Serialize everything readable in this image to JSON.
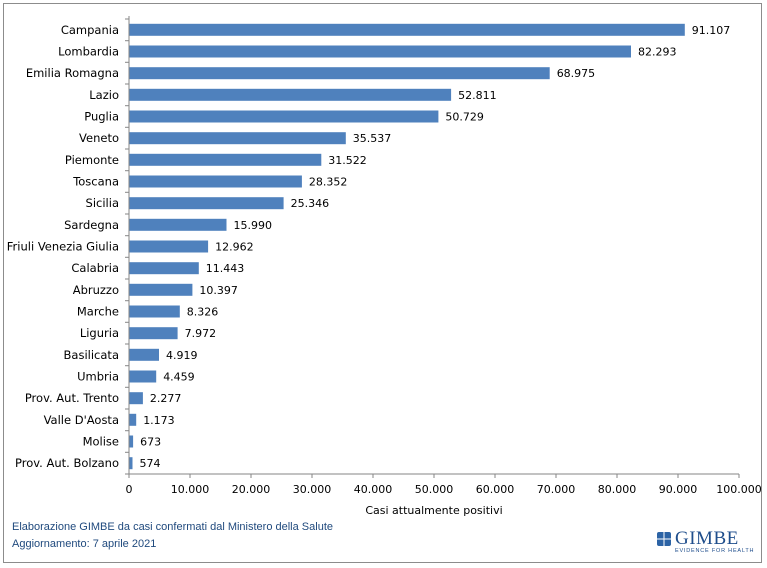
{
  "chart_data": {
    "type": "bar",
    "orientation": "horizontal",
    "categories": [
      "Campania",
      "Lombardia",
      "Emilia Romagna",
      "Lazio",
      "Puglia",
      "Veneto",
      "Piemonte",
      "Toscana",
      "Sicilia",
      "Sardegna",
      "Friuli Venezia Giulia",
      "Calabria",
      "Abruzzo",
      "Marche",
      "Liguria",
      "Basilicata",
      "Umbria",
      "Prov. Aut. Trento",
      "Valle D'Aosta",
      "Molise",
      "Prov. Aut. Bolzano"
    ],
    "values": [
      91107,
      82293,
      68975,
      52811,
      50729,
      35537,
      31522,
      28352,
      25346,
      15990,
      12962,
      11443,
      10397,
      8326,
      7972,
      4919,
      4459,
      2277,
      1173,
      673,
      574
    ],
    "value_labels": [
      "91.107",
      "82.293",
      "68.975",
      "52.811",
      "50.729",
      "35.537",
      "31.522",
      "28.352",
      "25.346",
      "15.990",
      "12.962",
      "11.443",
      "10.397",
      "8.326",
      "7.972",
      "4.919",
      "4.459",
      "2.277",
      "1.173",
      "673",
      "574"
    ],
    "xlabel": "Casi attualmente positivi",
    "xlim": [
      0,
      100000
    ],
    "xticks": [
      0,
      10000,
      20000,
      30000,
      40000,
      50000,
      60000,
      70000,
      80000,
      90000,
      100000
    ],
    "xtick_labels": [
      "0",
      "10.000",
      "20.000",
      "30.000",
      "40.000",
      "50.000",
      "60.000",
      "70.000",
      "80.000",
      "90.000",
      "100.000"
    ],
    "grid": false,
    "legend": "none",
    "bar_color": "#4f81bd"
  },
  "footer": {
    "source": "Elaborazione GIMBE da casi confermati dal Ministero della Salute",
    "updated": "Aggiornamento: 7 aprile 2021"
  },
  "logo": {
    "name": "GIMBE",
    "tagline": "EVIDENCE FOR HEALTH"
  },
  "colors": {
    "bar": "#4f81bd",
    "footer_text": "#1f497d",
    "logo": "#1f4e8c"
  }
}
